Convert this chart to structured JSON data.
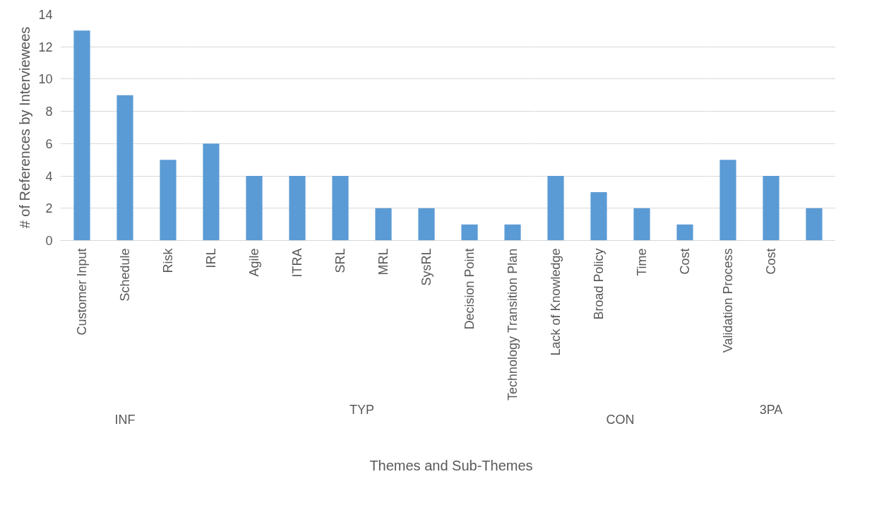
{
  "chart_data": [
    {
      "type": "bar",
      "xlabel": "INF",
      "ylabel": "# of References by Interviewees",
      "categories": [
        "Customer Input",
        "Schedule",
        "Risk"
      ],
      "values": [
        13,
        9,
        5
      ],
      "color": "#5b9bd5",
      "ylim": [
        0,
        14
      ],
      "yticks": [
        0,
        2,
        4,
        6,
        8,
        10,
        12,
        14
      ],
      "grid": "y",
      "annotations": [
        "Themes and Sub-Themes"
      ]
    },
    {
      "type": "bar",
      "xlabel": "TYP",
      "categories": [
        "IRL",
        "Agile",
        "ITRA",
        "SRL",
        "MRL",
        "SysRL",
        "Decision Point",
        "Technology Transition Plan"
      ],
      "values": [
        6,
        4,
        4,
        4,
        2,
        2,
        1,
        1
      ],
      "color": "#5b9bd5",
      "ylim": [
        0,
        14
      ],
      "yticks": [
        0,
        2,
        4,
        6,
        8,
        10,
        12,
        14
      ],
      "grid": "y",
      "tick_labels": "x"
    },
    {
      "type": "bar",
      "xlabel": "CON",
      "categories": [
        "Lack of Knowledge",
        "Broad Policy",
        "Time",
        "Cost"
      ],
      "values": [
        4,
        3,
        2,
        1
      ],
      "color": "#5b9bd5",
      "ylim": [
        0,
        14
      ],
      "yticks": [
        0,
        2,
        4,
        6,
        8,
        10,
        12,
        14
      ],
      "grid": "y",
      "tick_labels": "x"
    },
    {
      "type": "bar",
      "xlabel": "3PA",
      "categories": [
        "Validation Process",
        "Cost",
        null
      ],
      "values": [
        5,
        4,
        2
      ],
      "color": "#5b9bd5",
      "ylim": [
        0,
        14
      ],
      "yticks": [
        0,
        2,
        4,
        6,
        8,
        10,
        12,
        14
      ],
      "grid": "y",
      "tick_labels": "x"
    }
  ]
}
